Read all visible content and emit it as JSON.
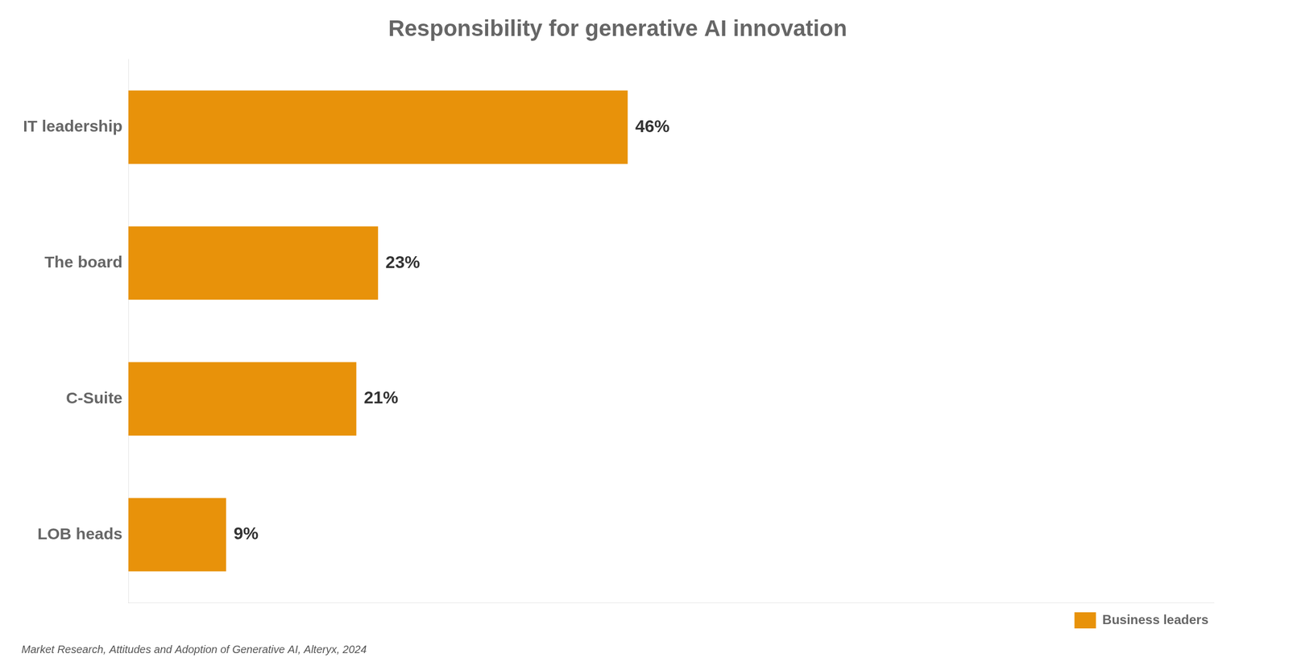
{
  "chart_data": {
    "type": "bar",
    "orientation": "horizontal",
    "title": "Responsibility for generative AI innovation",
    "categories": [
      "IT leadership",
      "The board",
      "C-Suite",
      "LOB heads"
    ],
    "series": [
      {
        "name": "Business leaders",
        "color": "#e8920a",
        "values": [
          46,
          23,
          21,
          9
        ],
        "value_labels": [
          "46%",
          "23%",
          "21%",
          "9%"
        ]
      }
    ],
    "xlim": [
      0,
      100
    ],
    "data_labels": true,
    "tick_labels": "y",
    "grid": false,
    "legend": "bottom",
    "annotations": [
      "Market Research, Attitudes and Adoption of Generative AI, Alteryx, 2024"
    ]
  }
}
